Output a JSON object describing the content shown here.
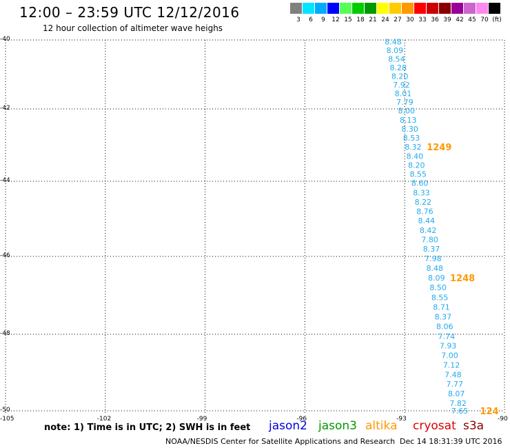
{
  "header": {
    "title": "12:00 – 23:59 UTC 12/12/2016",
    "subtitle": "12 hour collection of altimeter wave heighs"
  },
  "scale": {
    "labels": [
      "3",
      "6",
      "9",
      "12",
      "15",
      "18",
      "21",
      "24",
      "27",
      "30",
      "33",
      "36",
      "39",
      "42",
      "45",
      "70",
      "(ft)"
    ],
    "colors": [
      "#808080",
      "#00e5ff",
      "#00aaff",
      "#0000ff",
      "#55ff55",
      "#00cc00",
      "#009900",
      "#ffff00",
      "#ffcc00",
      "#ff9900",
      "#ff0000",
      "#cc0000",
      "#880000",
      "#990099",
      "#cc66cc",
      "#ff88ee",
      "#000000"
    ]
  },
  "axes": {
    "lat_labels": [
      "-40",
      "-42",
      "-44",
      "-46",
      "-48",
      "-50"
    ],
    "lon_labels": [
      "-105",
      "-102",
      "-99",
      "-96",
      "-93",
      "-90"
    ]
  },
  "chart_data": {
    "type": "map",
    "track": {
      "color": "#22aaee",
      "points": [
        {
          "lon": -93.6,
          "lat": -40.05,
          "swh": "8.48"
        },
        {
          "lon": -93.55,
          "lat": -40.3,
          "swh": "8.09"
        },
        {
          "lon": -93.5,
          "lat": -40.55,
          "swh": "8.54"
        },
        {
          "lon": -93.45,
          "lat": -40.8,
          "swh": "8.28"
        },
        {
          "lon": -93.4,
          "lat": -41.05,
          "swh": "8.20"
        },
        {
          "lon": -93.35,
          "lat": -41.3,
          "swh": "7.92"
        },
        {
          "lon": -93.3,
          "lat": -41.55,
          "swh": "8.01"
        },
        {
          "lon": -93.25,
          "lat": -41.8,
          "swh": "7.79"
        },
        {
          "lon": -93.2,
          "lat": -42.05,
          "swh": "8.00"
        },
        {
          "lon": -93.15,
          "lat": -42.3,
          "swh": "8.13"
        },
        {
          "lon": -93.1,
          "lat": -42.55,
          "swh": "8.30"
        },
        {
          "lon": -93.05,
          "lat": -42.8,
          "swh": "8.53"
        },
        {
          "lon": -93.0,
          "lat": -43.05,
          "swh": "8.32"
        },
        {
          "lon": -92.95,
          "lat": -43.3,
          "swh": "8.40"
        },
        {
          "lon": -92.9,
          "lat": -43.55,
          "swh": "8.20"
        },
        {
          "lon": -92.85,
          "lat": -43.8,
          "swh": "8.55"
        },
        {
          "lon": -92.8,
          "lat": -44.05,
          "swh": "8.60"
        },
        {
          "lon": -92.75,
          "lat": -44.3,
          "swh": "8.33"
        },
        {
          "lon": -92.7,
          "lat": -44.55,
          "swh": "8.22"
        },
        {
          "lon": -92.65,
          "lat": -44.8,
          "swh": "8.76"
        },
        {
          "lon": -92.6,
          "lat": -45.05,
          "swh": "8.44"
        },
        {
          "lon": -92.55,
          "lat": -45.3,
          "swh": "8.42"
        },
        {
          "lon": -92.5,
          "lat": -45.55,
          "swh": "7.80"
        },
        {
          "lon": -92.45,
          "lat": -45.8,
          "swh": "8.37"
        },
        {
          "lon": -92.4,
          "lat": -46.05,
          "swh": "7.98"
        },
        {
          "lon": -92.35,
          "lat": -46.3,
          "swh": "8.48"
        },
        {
          "lon": -92.3,
          "lat": -46.55,
          "swh": "8.09"
        },
        {
          "lon": -92.25,
          "lat": -46.8,
          "swh": "8.50"
        },
        {
          "lon": -92.2,
          "lat": -47.05,
          "swh": "8.55"
        },
        {
          "lon": -92.15,
          "lat": -47.3,
          "swh": "8.71"
        },
        {
          "lon": -92.1,
          "lat": -47.55,
          "swh": "8.37"
        },
        {
          "lon": -92.05,
          "lat": -47.8,
          "swh": "8.06"
        },
        {
          "lon": -92.0,
          "lat": -48.05,
          "swh": "7.74"
        },
        {
          "lon": -91.95,
          "lat": -48.3,
          "swh": "7.93"
        },
        {
          "lon": -91.9,
          "lat": -48.55,
          "swh": "7.00"
        },
        {
          "lon": -91.85,
          "lat": -48.8,
          "swh": "7.12"
        },
        {
          "lon": -91.8,
          "lat": -49.05,
          "swh": "7.48"
        },
        {
          "lon": -91.75,
          "lat": -49.3,
          "swh": "7.77"
        },
        {
          "lon": -91.7,
          "lat": -49.55,
          "swh": "8.07"
        },
        {
          "lon": -91.65,
          "lat": -49.8,
          "swh": "7.82"
        },
        {
          "lon": -91.6,
          "lat": -50.05,
          "swh": "7.65"
        }
      ]
    },
    "time_labels": [
      {
        "text": "1249",
        "lon": -93.0,
        "lat": -43.05,
        "color": "#ff9900"
      },
      {
        "text": "1248",
        "lon": -92.3,
        "lat": -46.55,
        "color": "#ff9900"
      },
      {
        "text": "124",
        "lon": -91.4,
        "lat": -50.05,
        "color": "#ff9900"
      }
    ],
    "xlim": [
      -105,
      -90
    ],
    "ylim": [
      -50,
      -40
    ]
  },
  "footer": {
    "note": "note: 1) Time is in UTC; 2) SWH is in feet",
    "satellites": [
      {
        "name": "jason2",
        "color": "#0000dd"
      },
      {
        "name": "jason3",
        "color": "#009900"
      },
      {
        "name": "altika",
        "color": "#ff9900"
      },
      {
        "name": "cryosat",
        "color": "#dd0000"
      },
      {
        "name": "s3a",
        "color": "#880000"
      }
    ],
    "credit": "NOAA/NESDIS Center for Satellite Applications and Research",
    "stamp": "Dec 14 18:31:39 UTC 2016"
  }
}
